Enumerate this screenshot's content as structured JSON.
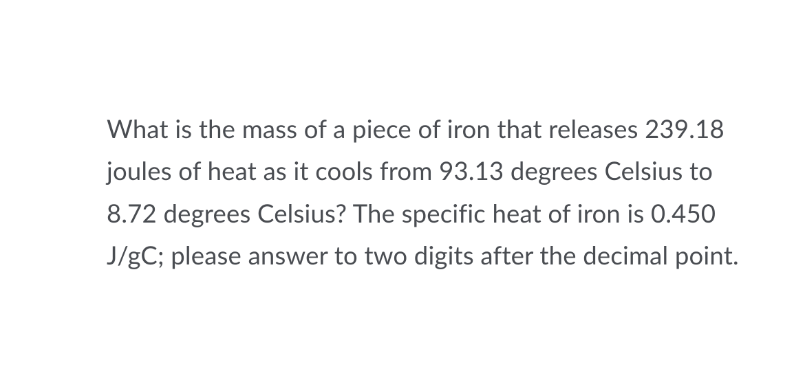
{
  "question": {
    "text": "What is the mass of a piece of iron that releases 239.18 joules of heat as it cools from 93.13 degrees Celsius to 8.72 degrees Celsius?  The specific heat of iron is 0.450 J/gC; please answer to two digits after the decimal point.",
    "font_size": 36.5,
    "line_height": 1.68,
    "text_color": "#4a4d52",
    "background_color": "#ffffff",
    "font_weight": 400
  }
}
